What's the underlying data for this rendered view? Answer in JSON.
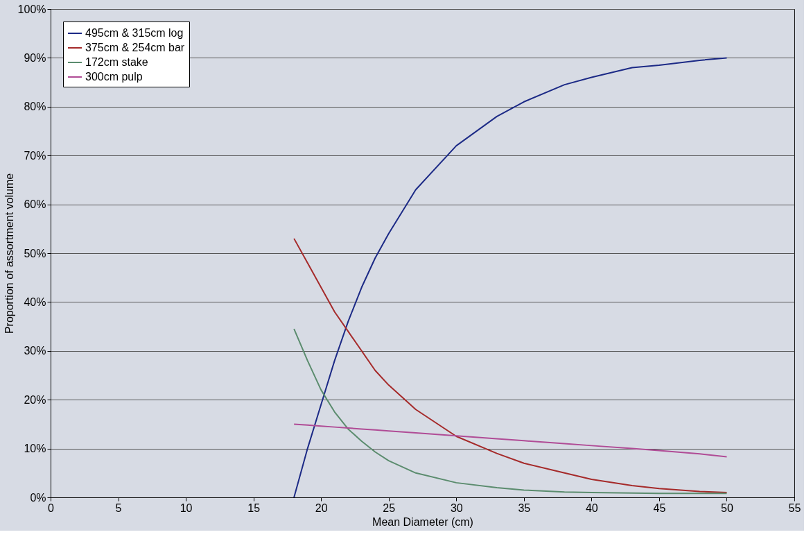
{
  "chart_data": {
    "type": "line",
    "xlabel": "Mean Diameter (cm)",
    "ylabel": "Proportion of assortment volume",
    "xlim": [
      0,
      55
    ],
    "xticks": [
      0,
      5,
      10,
      15,
      20,
      25,
      30,
      35,
      40,
      45,
      50,
      55
    ],
    "ylim": [
      0,
      100
    ],
    "yticks": [
      {
        "value": 0,
        "label": "0%"
      },
      {
        "value": 10,
        "label": "10%"
      },
      {
        "value": 20,
        "label": "20%"
      },
      {
        "value": 30,
        "label": "30%"
      },
      {
        "value": 40,
        "label": "40%"
      },
      {
        "value": 50,
        "label": "50%"
      },
      {
        "value": 60,
        "label": "60%"
      },
      {
        "value": 70,
        "label": "70%"
      },
      {
        "value": 80,
        "label": "80%"
      },
      {
        "value": 90,
        "label": "90%"
      },
      {
        "value": 100,
        "label": "100%"
      }
    ],
    "x": [
      18,
      19,
      20,
      21,
      22,
      23,
      24,
      25,
      27,
      30,
      33,
      35,
      38,
      40,
      43,
      45,
      48,
      50
    ],
    "series": [
      {
        "name": "495cm & 315cm log",
        "color": "#1c2a86",
        "values": [
          0,
          10,
          19,
          28,
          36,
          43,
          49,
          54,
          63,
          72,
          78,
          81,
          84.5,
          86,
          88,
          88.5,
          89.5,
          90
        ]
      },
      {
        "name": "375cm & 254cm bar",
        "color": "#a52a2a",
        "values": [
          53,
          48,
          43,
          38,
          34,
          30,
          26,
          23,
          18,
          12.5,
          9,
          7,
          5,
          3.7,
          2.4,
          1.8,
          1.2,
          1
        ]
      },
      {
        "name": "172cm stake",
        "color": "#5b8c6e",
        "values": [
          34.5,
          28,
          22,
          17.5,
          14,
          11.5,
          9.3,
          7.5,
          5,
          3,
          2,
          1.5,
          1.1,
          1,
          0.9,
          0.8,
          0.8,
          0.8
        ]
      },
      {
        "name": "300cm pulp",
        "color": "#b04c96",
        "values": [
          15,
          14.8,
          14.6,
          14.4,
          14.2,
          14,
          13.8,
          13.6,
          13.2,
          12.6,
          12,
          11.6,
          11,
          10.6,
          10,
          9.6,
          8.9,
          8.3
        ]
      }
    ],
    "grid": "y",
    "legend": "top left",
    "marker": "none",
    "line_style": "solid"
  }
}
